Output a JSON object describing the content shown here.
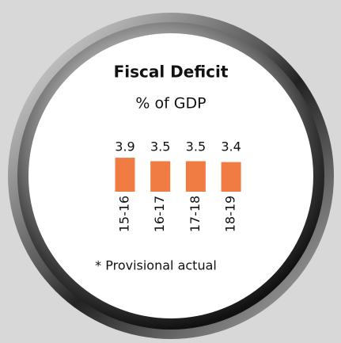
{
  "chart_data": {
    "type": "bar",
    "title": "Fiscal Deficit",
    "subtitle": "% of GDP",
    "categories": [
      "15-16",
      "16-17",
      "17-18",
      "18-19"
    ],
    "values": [
      3.9,
      3.5,
      3.5,
      3.4
    ],
    "color": "#f07b43",
    "note": "* Provisional actual"
  }
}
